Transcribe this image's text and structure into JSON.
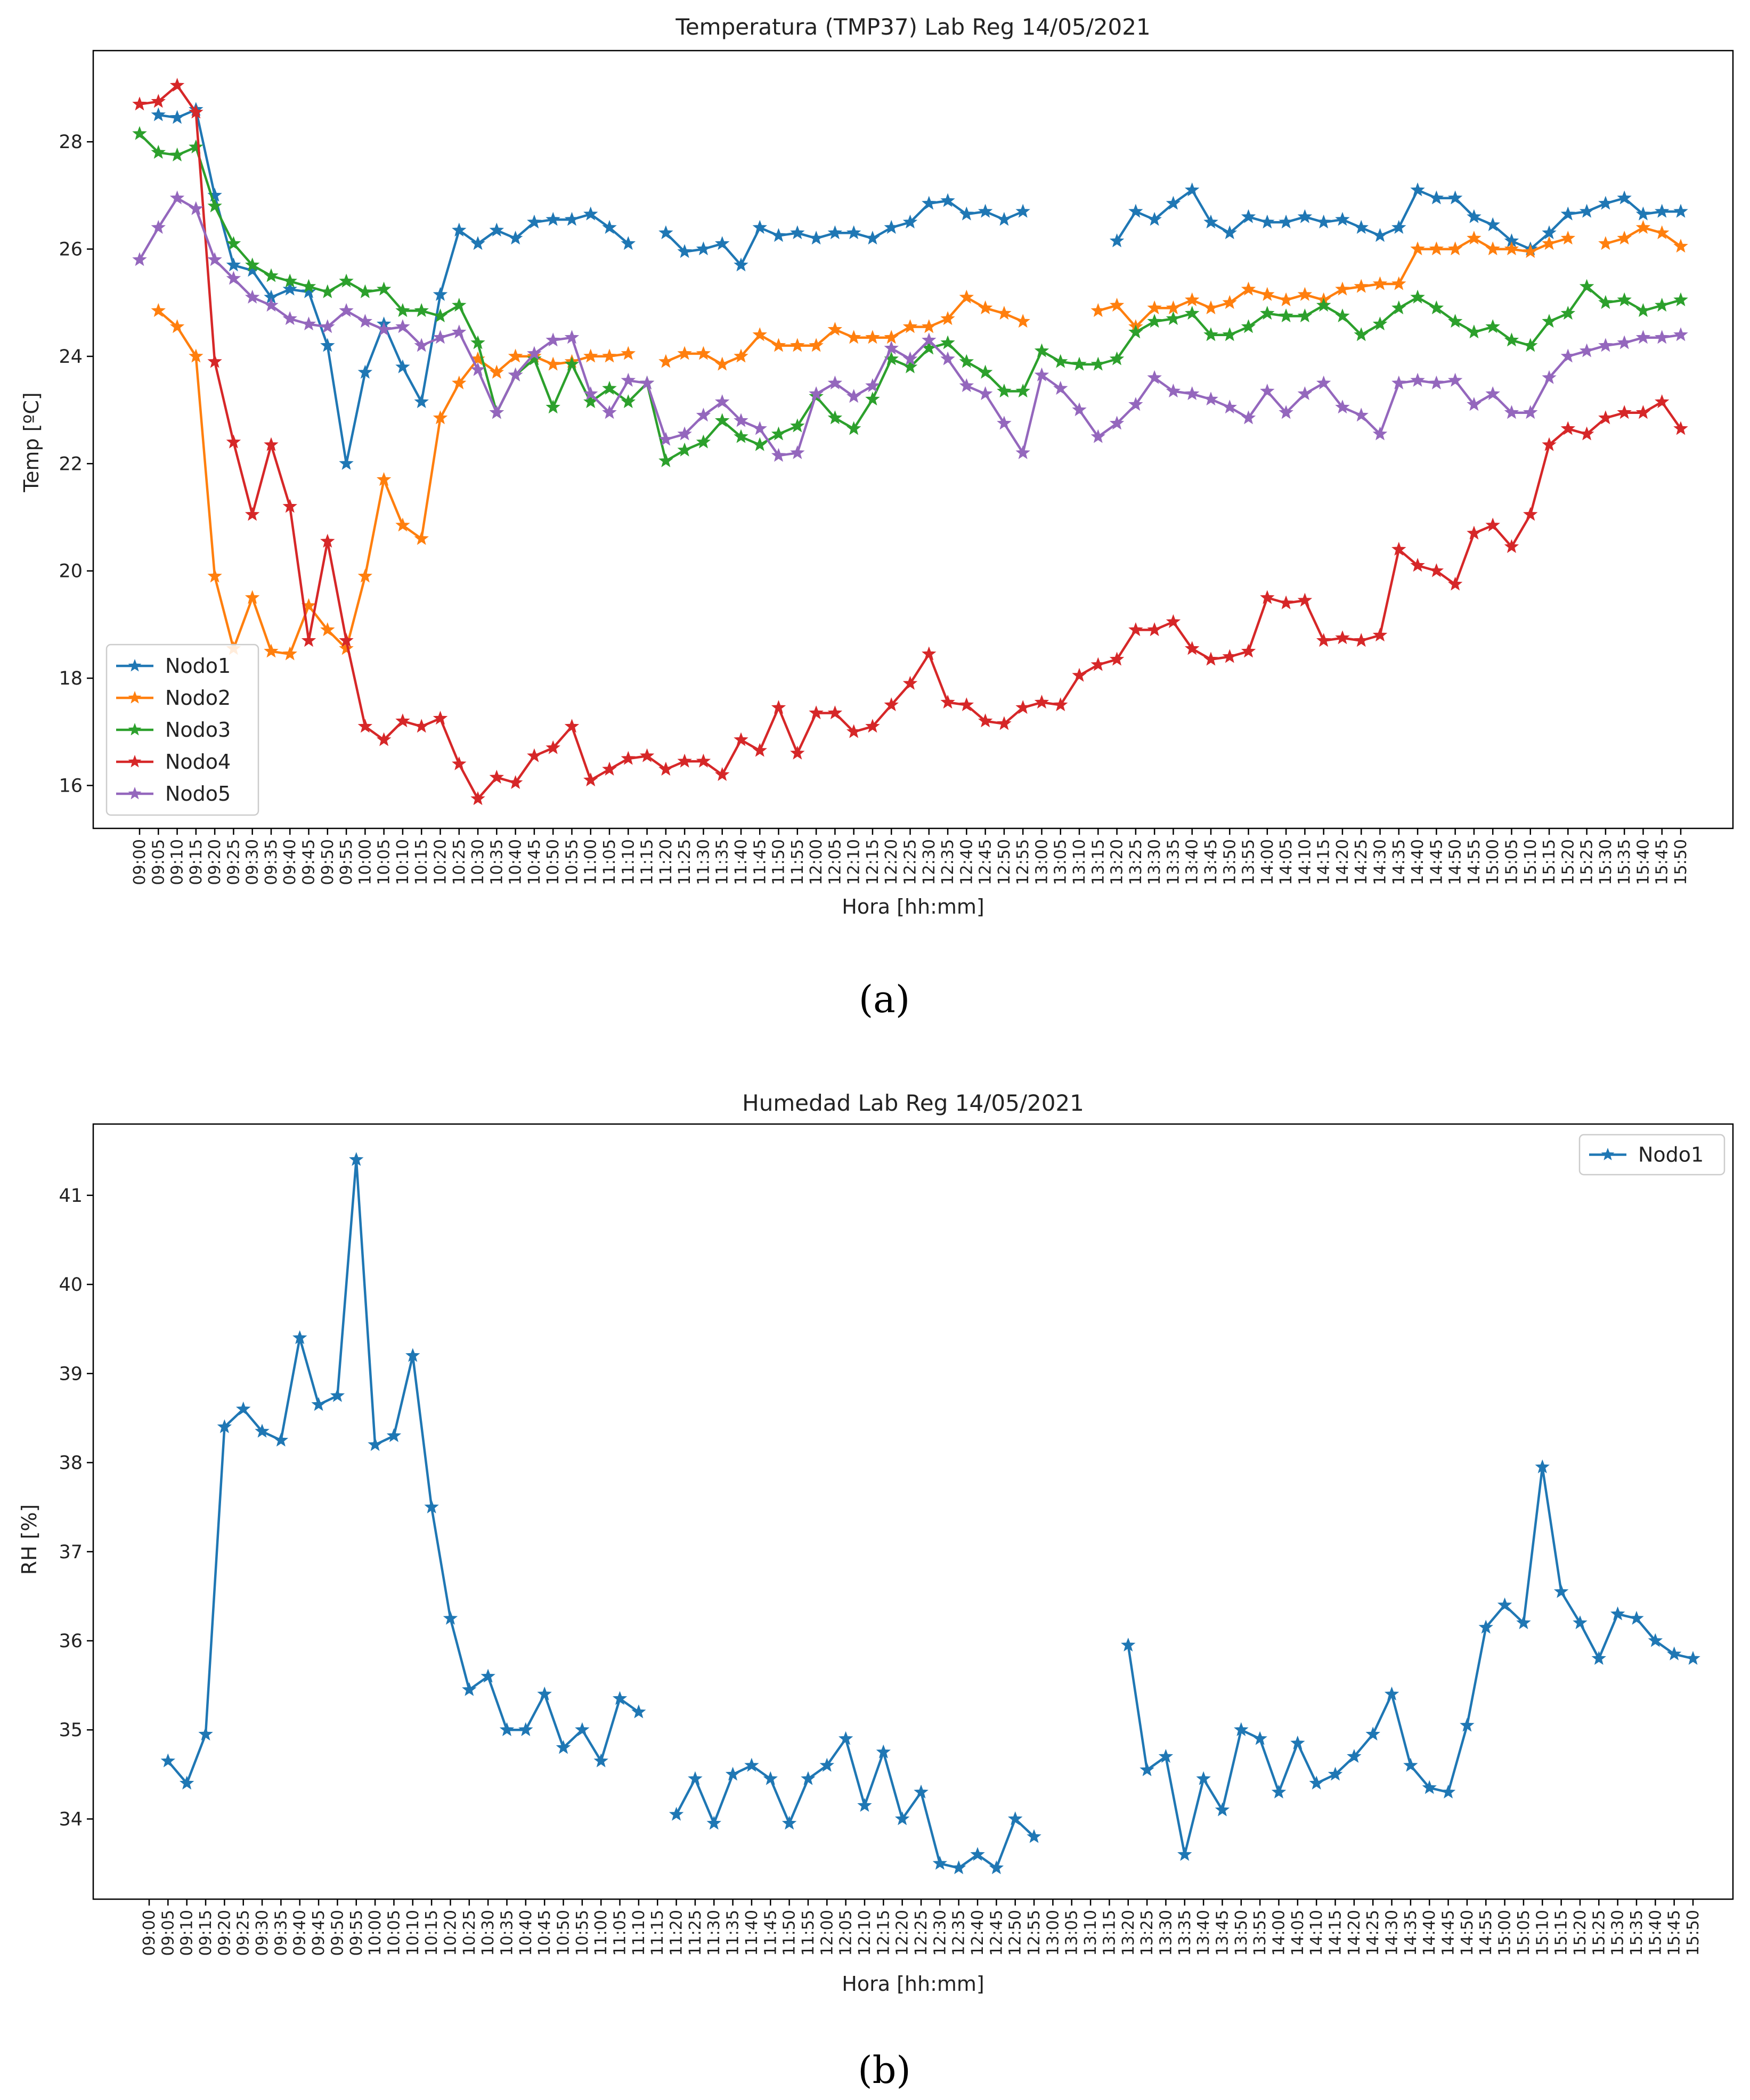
{
  "chart_data": [
    {
      "type": "line",
      "title": "Temperatura (TMP37) Lab Reg 14/05/2021",
      "xlabel": "Hora [hh:mm]",
      "ylabel": "Temp [ºC]",
      "ylim": [
        15.2,
        29.7
      ],
      "yticks": [
        16,
        18,
        20,
        22,
        24,
        26,
        28
      ],
      "categories": [
        "09:00",
        "09:05",
        "09:10",
        "09:15",
        "09:20",
        "09:25",
        "09:30",
        "09:35",
        "09:40",
        "09:45",
        "09:50",
        "09:55",
        "10:00",
        "10:05",
        "10:10",
        "10:15",
        "10:20",
        "10:25",
        "10:30",
        "10:35",
        "10:40",
        "10:45",
        "10:50",
        "10:55",
        "11:00",
        "11:05",
        "11:10",
        "11:15",
        "11:20",
        "11:25",
        "11:30",
        "11:35",
        "11:40",
        "11:45",
        "11:50",
        "11:55",
        "12:00",
        "12:05",
        "12:10",
        "12:15",
        "12:20",
        "12:25",
        "12:30",
        "12:35",
        "12:40",
        "12:45",
        "12:50",
        "12:55",
        "13:00",
        "13:05",
        "13:10",
        "13:15",
        "13:20",
        "13:25",
        "13:30",
        "13:35",
        "13:40",
        "13:45",
        "13:50",
        "13:55",
        "14:00",
        "14:05",
        "14:10",
        "14:15",
        "14:20",
        "14:25",
        "14:30",
        "14:35",
        "14:40",
        "14:45",
        "14:50",
        "14:55",
        "15:00",
        "15:05",
        "15:10",
        "15:15",
        "15:20",
        "15:25",
        "15:30",
        "15:35",
        "15:40",
        "15:45",
        "15:50"
      ],
      "point_spacing": 0.6,
      "legend_location": "lower-left",
      "series": [
        {
          "name": "Nodo1",
          "color": "#1f77b4",
          "values": [
            null,
            28.5,
            28.45,
            28.6,
            27.0,
            25.7,
            25.6,
            25.1,
            25.25,
            25.2,
            24.2,
            22.0,
            23.7,
            24.6,
            23.8,
            23.15,
            25.15,
            26.35,
            26.1,
            26.35,
            26.2,
            26.5,
            26.55,
            26.55,
            26.65,
            26.4,
            26.1,
            null,
            26.3,
            25.95,
            26.0,
            26.1,
            25.7,
            26.4,
            26.25,
            26.3,
            26.2,
            26.3,
            26.3,
            26.2,
            26.4,
            26.5,
            26.85,
            26.9,
            26.65,
            26.7,
            26.55,
            26.7,
            null,
            null,
            null,
            null,
            26.15,
            26.7,
            26.55,
            26.85,
            27.1,
            26.5,
            26.3,
            26.6,
            26.5,
            26.5,
            26.6,
            26.5,
            26.55,
            26.4,
            26.25,
            26.4,
            27.1,
            26.95,
            26.95,
            26.6,
            26.45,
            26.15,
            26.0,
            26.3,
            26.65,
            26.7,
            26.85,
            26.95,
            26.65,
            26.7,
            26.7
          ]
        },
        {
          "name": "Nodo2",
          "color": "#ff7f0e",
          "values": [
            null,
            24.85,
            24.55,
            24.0,
            19.9,
            18.55,
            19.5,
            18.5,
            18.45,
            19.35,
            18.9,
            18.55,
            19.9,
            21.7,
            20.85,
            20.6,
            22.85,
            23.5,
            23.95,
            23.7,
            24.0,
            24.0,
            23.85,
            23.9,
            24.0,
            24.0,
            24.05,
            null,
            23.9,
            24.05,
            24.05,
            23.85,
            24.0,
            24.4,
            24.2,
            24.2,
            24.2,
            24.5,
            24.35,
            24.35,
            24.35,
            24.55,
            24.55,
            24.7,
            25.1,
            24.9,
            24.8,
            24.65,
            null,
            null,
            null,
            24.85,
            24.95,
            24.55,
            24.9,
            24.9,
            25.05,
            24.9,
            25.0,
            25.25,
            25.15,
            25.05,
            25.15,
            25.05,
            25.25,
            25.3,
            25.35,
            25.35,
            26.0,
            26.0,
            26.0,
            26.2,
            26.0,
            26.0,
            25.95,
            26.1,
            26.2,
            null,
            26.1,
            26.2,
            26.4,
            26.3,
            26.05
          ]
        },
        {
          "name": "Nodo3",
          "color": "#2ca02c",
          "values": [
            28.15,
            27.8,
            27.75,
            27.9,
            26.8,
            26.1,
            25.7,
            25.5,
            25.4,
            25.3,
            25.2,
            25.4,
            25.2,
            25.25,
            24.85,
            24.85,
            24.75,
            24.95,
            24.25,
            22.95,
            23.65,
            23.95,
            23.05,
            23.85,
            23.15,
            23.4,
            23.15,
            23.5,
            22.05,
            22.25,
            22.4,
            22.8,
            22.5,
            22.35,
            22.55,
            22.7,
            23.25,
            22.85,
            22.65,
            23.2,
            23.95,
            23.8,
            24.15,
            24.25,
            23.9,
            23.7,
            23.35,
            23.35,
            24.1,
            23.9,
            23.85,
            23.85,
            23.95,
            24.45,
            24.65,
            24.7,
            24.8,
            24.4,
            24.4,
            24.55,
            24.8,
            24.75,
            24.75,
            24.95,
            24.75,
            24.4,
            24.6,
            24.9,
            25.1,
            24.9,
            24.65,
            24.45,
            24.55,
            24.3,
            24.2,
            24.65,
            24.8,
            25.3,
            25.0,
            25.05,
            24.85,
            24.95,
            25.05
          ]
        },
        {
          "name": "Nodo4",
          "color": "#d62728",
          "values": [
            28.7,
            28.75,
            29.05,
            28.55,
            23.9,
            22.4,
            21.05,
            22.35,
            21.2,
            18.7,
            20.55,
            18.7,
            17.1,
            16.85,
            17.2,
            17.1,
            17.25,
            16.4,
            15.75,
            16.15,
            16.05,
            16.55,
            16.7,
            17.1,
            16.1,
            16.3,
            16.5,
            16.55,
            16.3,
            16.45,
            16.45,
            16.2,
            16.85,
            16.65,
            17.45,
            16.6,
            17.35,
            17.35,
            17.0,
            17.1,
            17.5,
            17.9,
            18.45,
            17.55,
            17.5,
            17.2,
            17.15,
            17.45,
            17.55,
            17.5,
            18.05,
            18.25,
            18.35,
            18.9,
            18.9,
            19.05,
            18.55,
            18.35,
            18.4,
            18.5,
            19.5,
            19.4,
            19.45,
            18.7,
            18.75,
            18.7,
            18.8,
            20.4,
            20.1,
            20.0,
            19.75,
            20.7,
            20.85,
            20.45,
            21.05,
            22.35,
            22.65,
            22.55,
            22.85,
            22.95,
            22.95,
            23.15,
            22.65
          ]
        },
        {
          "name": "Nodo5",
          "color": "#9467bd",
          "values": [
            25.8,
            26.4,
            26.95,
            26.75,
            25.8,
            25.45,
            25.1,
            24.95,
            24.7,
            24.6,
            24.55,
            24.85,
            24.65,
            24.5,
            24.55,
            24.2,
            24.35,
            24.45,
            23.75,
            22.95,
            23.65,
            24.05,
            24.3,
            24.35,
            23.3,
            22.95,
            23.55,
            23.5,
            22.45,
            22.55,
            22.9,
            23.15,
            22.8,
            22.65,
            22.15,
            22.2,
            23.3,
            23.5,
            23.25,
            23.45,
            24.15,
            23.95,
            24.3,
            23.95,
            23.45,
            23.3,
            22.75,
            22.2,
            23.65,
            23.4,
            23.0,
            22.5,
            22.75,
            23.1,
            23.6,
            23.35,
            23.3,
            23.2,
            23.05,
            22.85,
            23.35,
            22.95,
            23.3,
            23.5,
            23.05,
            22.9,
            22.55,
            23.5,
            23.55,
            23.5,
            23.55,
            23.1,
            23.3,
            22.95,
            22.95,
            23.6,
            24.0,
            24.1,
            24.2,
            24.25,
            24.35,
            24.35,
            24.4
          ]
        }
      ]
    },
    {
      "type": "line",
      "title": "Humedad Lab Reg 14/05/2021",
      "xlabel": "Hora [hh:mm]",
      "ylabel": "RH [%]",
      "ylim": [
        33.1,
        41.8
      ],
      "yticks": [
        34,
        35,
        36,
        37,
        38,
        39,
        40,
        41
      ],
      "categories": [
        "09:00",
        "09:05",
        "09:10",
        "09:15",
        "09:20",
        "09:25",
        "09:30",
        "09:35",
        "09:40",
        "09:45",
        "09:50",
        "09:55",
        "10:00",
        "10:05",
        "10:10",
        "10:15",
        "10:20",
        "10:25",
        "10:30",
        "10:35",
        "10:40",
        "10:45",
        "10:50",
        "10:55",
        "11:00",
        "11:05",
        "11:10",
        "11:15",
        "11:20",
        "11:25",
        "11:30",
        "11:35",
        "11:40",
        "11:45",
        "11:50",
        "11:55",
        "12:00",
        "12:05",
        "12:10",
        "12:15",
        "12:20",
        "12:25",
        "12:30",
        "12:35",
        "12:40",
        "12:45",
        "12:50",
        "12:55",
        "13:00",
        "13:05",
        "13:10",
        "13:15",
        "13:20",
        "13:25",
        "13:30",
        "13:35",
        "13:40",
        "13:45",
        "13:50",
        "13:55",
        "14:00",
        "14:05",
        "14:10",
        "14:15",
        "14:20",
        "14:25",
        "14:30",
        "14:35",
        "14:40",
        "14:45",
        "14:50",
        "14:55",
        "15:00",
        "15:05",
        "15:10",
        "15:15",
        "15:20",
        "15:25",
        "15:30",
        "15:35",
        "15:40",
        "15:45",
        "15:50"
      ],
      "point_spacing": 1,
      "legend_location": "top-right",
      "series": [
        {
          "name": "Nodo1",
          "color": "#1f77b4",
          "values": [
            null,
            34.65,
            34.4,
            34.95,
            38.4,
            38.6,
            38.35,
            38.25,
            39.4,
            38.65,
            38.75,
            41.4,
            38.2,
            38.3,
            39.2,
            37.5,
            36.25,
            35.45,
            35.6,
            35.0,
            35.0,
            35.4,
            34.8,
            35.0,
            34.65,
            35.35,
            35.2,
            null,
            34.05,
            34.45,
            33.95,
            34.5,
            34.6,
            34.45,
            33.95,
            34.45,
            34.6,
            34.9,
            34.15,
            34.75,
            34.0,
            34.3,
            33.5,
            33.45,
            33.6,
            33.45,
            34.0,
            33.8,
            null,
            null,
            null,
            null,
            35.95,
            34.55,
            34.7,
            33.6,
            34.45,
            34.1,
            35.0,
            34.9,
            34.3,
            34.85,
            34.4,
            34.5,
            34.7,
            34.95,
            35.4,
            34.6,
            34.35,
            34.3,
            35.05,
            36.15,
            36.4,
            36.2,
            37.95,
            36.55,
            36.2,
            35.8,
            36.3,
            36.25,
            36.0,
            35.85,
            35.8
          ]
        }
      ]
    }
  ],
  "captions": {
    "a": "(a)",
    "b": "(b)"
  }
}
